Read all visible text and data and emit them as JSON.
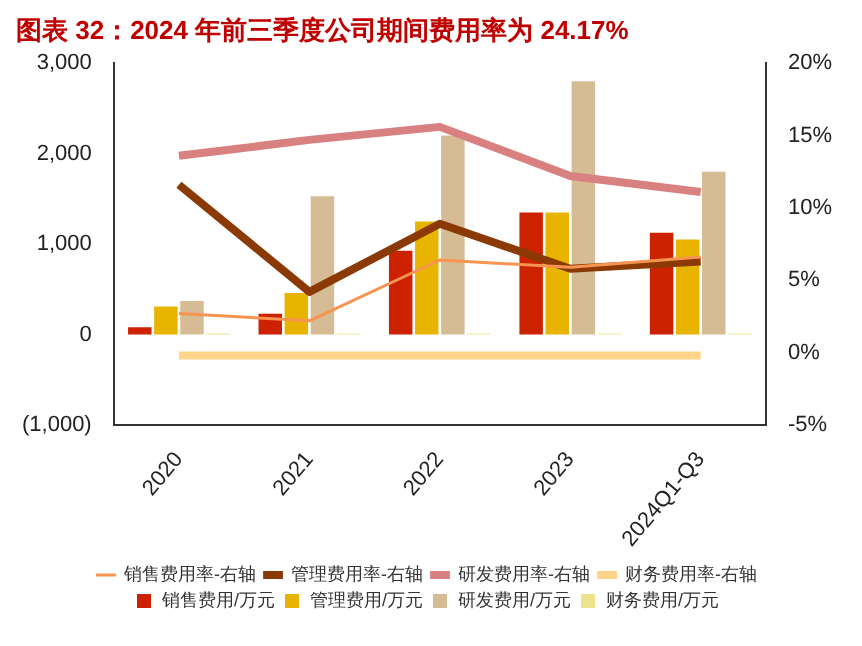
{
  "chart_data": {
    "type": "bar",
    "title": "图表 32：2024 年前三季度公司期间费用率为 24.17%",
    "categories": [
      "2020",
      "2021",
      "2022",
      "2023",
      "2024Q1-Q3"
    ],
    "series": [
      {
        "name": "销售费用/万元",
        "color": "#cc2200",
        "values": [
          80,
          230,
          925,
          1350,
          1125
        ]
      },
      {
        "name": "管理费用/万元",
        "color": "#e8b400",
        "values": [
          310,
          460,
          1250,
          1350,
          1050
        ]
      },
      {
        "name": "研发费用/万元",
        "color": "#d6bc94",
        "values": [
          370,
          1530,
          2200,
          2800,
          1800
        ]
      },
      {
        "name": "财务费用/万元",
        "color": "#ece38a",
        "values": [
          10,
          10,
          10,
          10,
          10
        ]
      },
      {
        "name": "销售费用率-右轴",
        "type": "line",
        "axis": "y2",
        "color": "#f7944f",
        "values": [
          2.7,
          2.2,
          6.4,
          5.9,
          6.6
        ]
      },
      {
        "name": "管理费用率-右轴",
        "type": "line",
        "axis": "y2",
        "color": "#8b3a06",
        "values": [
          11.6,
          4.2,
          8.9,
          5.8,
          6.3
        ]
      },
      {
        "name": "研发费用率-右轴",
        "type": "line",
        "axis": "y2",
        "color": "#d98080",
        "values": [
          13.6,
          14.7,
          15.6,
          12.2,
          11.1
        ]
      },
      {
        "name": "财务费用率-右轴",
        "type": "line",
        "axis": "y2",
        "color": "#fdd48a",
        "values": [
          -0.2,
          -0.2,
          -0.2,
          -0.2,
          -0.2
        ]
      }
    ],
    "ylim": [
      -1000,
      3000
    ],
    "yticks": [
      {
        "value": -1000,
        "label": "(1,000)"
      },
      0,
      {
        "value": 1000,
        "label": "1,000"
      },
      {
        "value": 2000,
        "label": "2,000"
      },
      {
        "value": 3000,
        "label": "3,000"
      }
    ],
    "y2lim": [
      -5,
      20
    ],
    "y2ticks": [
      {
        "value": -5,
        "label": "-5%"
      },
      {
        "value": 0,
        "label": "0%"
      },
      {
        "value": 5,
        "label": "5%"
      },
      {
        "value": 10,
        "label": "10%"
      },
      {
        "value": 15,
        "label": "15%"
      },
      {
        "value": 20,
        "label": "20%"
      }
    ],
    "grid": false,
    "legend": "bottom"
  }
}
